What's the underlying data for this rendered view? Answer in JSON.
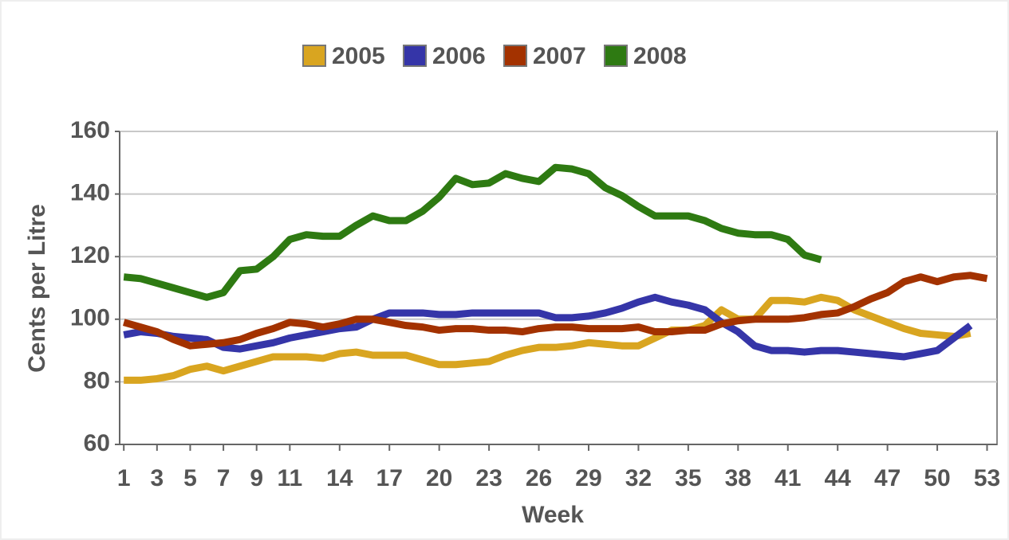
{
  "chart_data": {
    "type": "line",
    "x_label": "Week",
    "y_label": "Cents per Litre",
    "x": [
      1,
      2,
      3,
      4,
      5,
      6,
      7,
      8,
      9,
      10,
      11,
      12,
      13,
      14,
      15,
      16,
      17,
      18,
      19,
      20,
      21,
      22,
      23,
      24,
      25,
      26,
      27,
      28,
      29,
      30,
      31,
      32,
      33,
      34,
      35,
      36,
      37,
      38,
      39,
      40,
      41,
      42,
      43,
      44,
      45,
      46,
      47,
      48,
      49,
      50,
      51,
      52,
      53
    ],
    "xlim": [
      0.75,
      53.6
    ],
    "xticks": [
      1,
      3,
      5,
      7,
      9,
      11,
      14,
      17,
      20,
      23,
      26,
      29,
      32,
      35,
      38,
      41,
      44,
      47,
      50,
      53
    ],
    "ylim": [
      60,
      160
    ],
    "yticks": [
      60,
      80,
      100,
      120,
      140,
      160
    ],
    "grid": true,
    "legend": "top",
    "series": [
      {
        "name": "2005",
        "color": "#d9a520",
        "values": [
          80.5,
          80.5,
          81,
          82,
          84,
          85,
          83.5,
          85,
          86.5,
          88,
          88,
          88,
          87.5,
          89,
          89.5,
          88.5,
          88.5,
          88.5,
          87,
          85.5,
          85.5,
          86,
          86.5,
          88.5,
          90,
          91,
          91,
          91.5,
          92.5,
          92,
          91.5,
          91.5,
          94,
          96.5,
          96.5,
          98,
          103,
          100,
          100,
          106,
          106,
          105.5,
          107,
          106,
          103,
          101,
          99,
          97,
          95.5,
          95,
          94.5,
          95.5,
          null
        ]
      },
      {
        "name": "2006",
        "color": "#3535a8",
        "values": [
          95,
          96,
          95.5,
          94.5,
          94,
          93.5,
          91,
          90.5,
          91.5,
          92.5,
          94,
          95,
          96,
          97,
          97.5,
          100,
          102,
          102,
          102,
          101.5,
          101.5,
          102,
          102,
          102,
          102,
          102,
          100.5,
          100.5,
          101,
          102,
          103.5,
          105.5,
          107,
          105.5,
          104.5,
          103,
          99,
          96,
          91.5,
          90,
          90,
          89.5,
          90,
          90,
          89.5,
          89,
          88.5,
          88,
          89,
          90,
          94,
          98,
          null
        ]
      },
      {
        "name": "2007",
        "color": "#a33200",
        "values": [
          99,
          97.5,
          96,
          93.5,
          91.5,
          92,
          92.5,
          93.5,
          95.5,
          97,
          99,
          98.5,
          97.5,
          98.5,
          100,
          100,
          99,
          98,
          97.5,
          96.5,
          97,
          97,
          96.5,
          96.5,
          96,
          97,
          97.5,
          97.5,
          97,
          97,
          97,
          97.5,
          96,
          96,
          96.5,
          96.5,
          98.5,
          99.5,
          100,
          100,
          100,
          100.5,
          101.5,
          102,
          104,
          106.5,
          108.5,
          112,
          113.5,
          112,
          113.5,
          114,
          113
        ]
      },
      {
        "name": "2008",
        "color": "#2e7a12",
        "values": [
          113.5,
          113,
          111.5,
          110,
          108.5,
          107,
          108.5,
          115.5,
          116,
          120,
          125.5,
          127,
          126.5,
          126.5,
          130,
          133,
          131.5,
          131.5,
          134.5,
          139,
          145,
          143,
          143.5,
          146.5,
          145,
          144,
          148.5,
          148,
          146.5,
          142,
          139.5,
          136,
          133,
          133,
          133,
          131.5,
          129,
          127.5,
          127,
          127,
          125.5,
          120.5,
          119,
          null,
          null,
          null,
          null,
          null,
          null,
          null,
          null,
          null,
          null
        ]
      }
    ]
  }
}
